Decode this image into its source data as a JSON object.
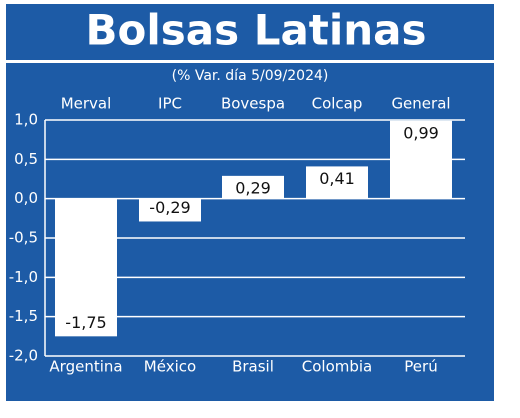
{
  "chart_data": {
    "type": "bar",
    "title": "Bolsas Latinas",
    "subtitle": "(% Var. día 5/09/2024)",
    "categories": [
      "Merval",
      "IPC",
      "Bovespa",
      "Colcap",
      "General"
    ],
    "countries": [
      "Argentina",
      "México",
      "Brasil",
      "Colombia",
      "Perú"
    ],
    "values": [
      -1.75,
      -0.29,
      0.29,
      0.41,
      0.99
    ],
    "value_labels": [
      "-1,75",
      "-0,29",
      "0,29",
      "0,41",
      "0,99"
    ],
    "color": "#ffffff",
    "background": "#1d5ba6",
    "ylim": [
      -2,
      1
    ],
    "yticks": [
      {
        "value": 1,
        "label": "1,0"
      },
      {
        "value": 0.5,
        "label": "0,5"
      },
      {
        "value": 0,
        "label": "0,0"
      },
      {
        "value": -0.5,
        "label": "-0,5"
      },
      {
        "value": -1,
        "label": "-1,0"
      },
      {
        "value": -1.5,
        "label": "-1,5"
      },
      {
        "value": -2,
        "label": "-2,0"
      }
    ],
    "grid": true
  }
}
